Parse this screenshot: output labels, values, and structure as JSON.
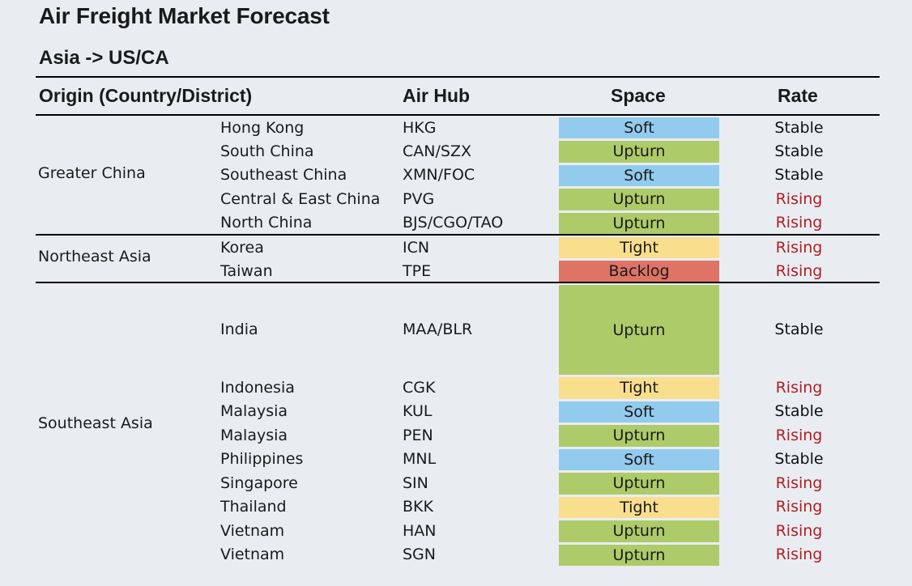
{
  "title": "Air Freight Market Forecast",
  "route": "Asia -> US/CA",
  "headers": {
    "origin": "Origin (Country/District)",
    "hub": "Air Hub",
    "space": "Space",
    "rate": "Rate"
  },
  "colors": {
    "Soft": "#92cbed",
    "Upturn": "#aecb69",
    "Tight": "#f9de8e",
    "Backlog": "#de7366",
    "Rising": "#b01e22",
    "Stable": "#111111"
  },
  "groups": [
    {
      "name": "Greater China",
      "rows": [
        {
          "origin": "Hong Kong",
          "hub": "HKG",
          "space": "Soft",
          "rate": "Stable"
        },
        {
          "origin": "South China",
          "hub": "CAN/SZX",
          "space": "Upturn",
          "rate": "Stable"
        },
        {
          "origin": "Southeast China",
          "hub": "XMN/FOC",
          "space": "Soft",
          "rate": "Stable"
        },
        {
          "origin": "Central & East China",
          "hub": "PVG",
          "space": "Upturn",
          "rate": "Rising"
        },
        {
          "origin": "North China",
          "hub": "BJS/CGO/TAO",
          "space": "Upturn",
          "rate": "Rising"
        }
      ]
    },
    {
      "name": "Northeast Asia",
      "rows": [
        {
          "origin": "Korea",
          "hub": "ICN",
          "space": "Tight",
          "rate": "Rising"
        },
        {
          "origin": "Taiwan",
          "hub": "TPE",
          "space": "Backlog",
          "rate": "Rising"
        }
      ]
    },
    {
      "name": "Southeast Asia",
      "rows": [
        {
          "origin": "India",
          "hub": "MAA/BLR",
          "space": "Upturn",
          "rate": "Stable"
        },
        {
          "origin": "Indonesia",
          "hub": "CGK",
          "space": "Tight",
          "rate": "Rising"
        },
        {
          "origin": "Malaysia",
          "hub": "KUL",
          "space": "Soft",
          "rate": "Stable"
        },
        {
          "origin": "Malaysia",
          "hub": "PEN",
          "space": "Upturn",
          "rate": "Rising"
        },
        {
          "origin": "Philippines",
          "hub": "MNL",
          "space": "Soft",
          "rate": "Stable"
        },
        {
          "origin": "Singapore",
          "hub": "SIN",
          "space": "Upturn",
          "rate": "Rising"
        },
        {
          "origin": "Thailand",
          "hub": "BKK",
          "space": "Tight",
          "rate": "Rising"
        },
        {
          "origin": "Vietnam",
          "hub": "HAN",
          "space": "Upturn",
          "rate": "Rising"
        },
        {
          "origin": "Vietnam",
          "hub": "SGN",
          "space": "Upturn",
          "rate": "Rising"
        }
      ]
    }
  ]
}
